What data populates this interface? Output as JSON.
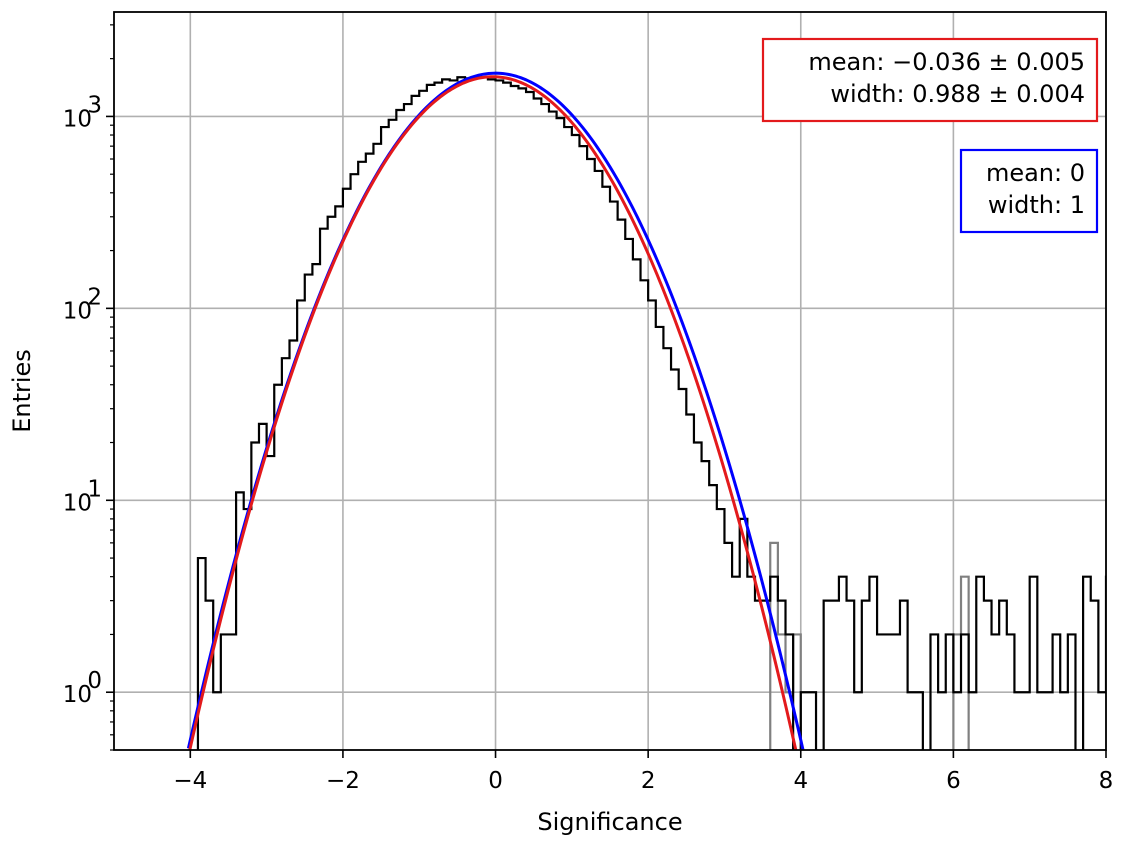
{
  "chart_data": {
    "type": "histogram",
    "xlabel": "Significance",
    "ylabel": "Entries",
    "xlim": [
      -5,
      8
    ],
    "ylim": [
      0.5,
      3500
    ],
    "yscale": "log",
    "grid": true,
    "x_ticks": [
      {
        "value": -4,
        "label": "−4"
      },
      {
        "value": -2,
        "label": "−2"
      },
      {
        "value": 0,
        "label": "0"
      },
      {
        "value": 2,
        "label": "2"
      },
      {
        "value": 4,
        "label": "4"
      },
      {
        "value": 6,
        "label": "6"
      },
      {
        "value": 8,
        "label": "8"
      }
    ],
    "y_ticks": [
      {
        "value": 1,
        "base": "10",
        "exp": "0"
      },
      {
        "value": 10,
        "base": "10",
        "exp": "1"
      },
      {
        "value": 100,
        "base": "10",
        "exp": "2"
      },
      {
        "value": 1000,
        "base": "10",
        "exp": "3"
      }
    ],
    "annotations": [
      {
        "lines": [
          "mean: −0.036 ± 0.005",
          "width: 0.988 ± 0.004"
        ],
        "color": "#e31a1c",
        "position": "top-right"
      },
      {
        "lines": [
          "mean: 0",
          "width: 1"
        ],
        "color": "#0000ff",
        "position": "right"
      }
    ],
    "histograms": [
      {
        "color": "#808080",
        "bin_width": 0.1,
        "edges_start": 3.4,
        "values": [
          0,
          0,
          6,
          2,
          1,
          2,
          0,
          0,
          0,
          0,
          0,
          0,
          0,
          0,
          0,
          0,
          0,
          0,
          0,
          0,
          0,
          0,
          0,
          0,
          0,
          0,
          2,
          4,
          0,
          0,
          0,
          0,
          0,
          0,
          0,
          0,
          0,
          0,
          0,
          0,
          0,
          0,
          0,
          0,
          0,
          0
        ]
      },
      {
        "color": "#000000",
        "bin_width": 0.1,
        "edges_start": -4.0,
        "values": [
          0.4,
          5,
          3,
          1,
          2,
          2,
          11,
          9,
          20,
          25,
          17,
          40,
          55,
          68,
          110,
          150,
          170,
          260,
          300,
          340,
          420,
          500,
          580,
          640,
          720,
          880,
          960,
          1080,
          1160,
          1280,
          1360,
          1460,
          1500,
          1560,
          1540,
          1600,
          1580,
          1600,
          1600,
          1560,
          1540,
          1500,
          1440,
          1400,
          1340,
          1240,
          1160,
          1060,
          980,
          880,
          800,
          700,
          600,
          520,
          430,
          360,
          290,
          230,
          180,
          140,
          110,
          80,
          62,
          48,
          38,
          28,
          20,
          16,
          12,
          9,
          6,
          4,
          8,
          4,
          3,
          3,
          4,
          3,
          2,
          0.4,
          1,
          1,
          0.4,
          3,
          3,
          4,
          3,
          1,
          3,
          4,
          2,
          2,
          2,
          3,
          1,
          1,
          0.4,
          2,
          1,
          2,
          1,
          2,
          1,
          4,
          3,
          2,
          3,
          2,
          1,
          1,
          4,
          1,
          1,
          2,
          1,
          2,
          0.4,
          4,
          3,
          1,
          4,
          3,
          1,
          2
        ],
        "note_overflow_bins": "bins above 4.0 continue the visible step pattern"
      }
    ],
    "curves": [
      {
        "name": "",
        "color": "#0000ff",
        "mean": 0,
        "width": 1,
        "amplitude": 1680
      },
      {
        "name": "",
        "color": "#e31a1c",
        "mean": -0.036,
        "width": 0.988,
        "amplitude": 1610
      }
    ]
  }
}
